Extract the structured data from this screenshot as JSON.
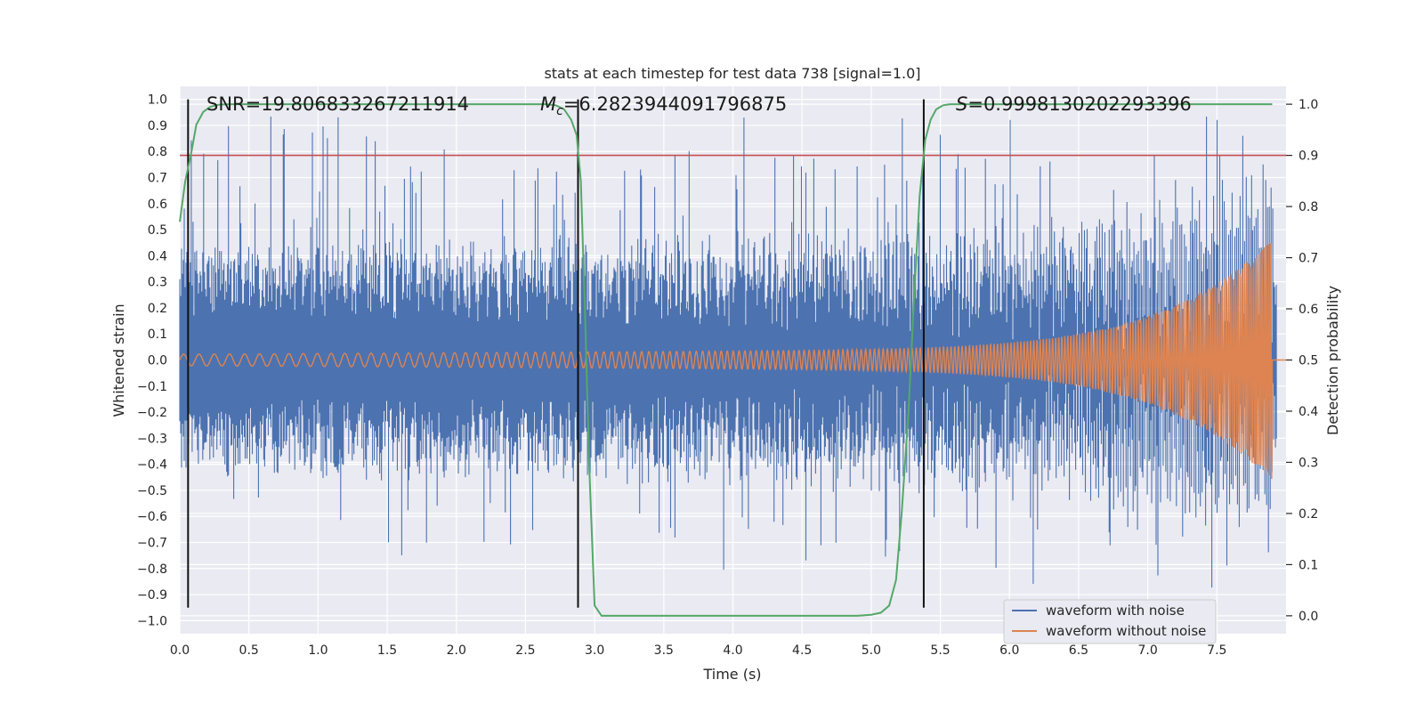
{
  "chart_data": {
    "type": "line",
    "title": "stats at each timestep for test data 738 [signal=1.0]",
    "xlabel": "Time (s)",
    "ylabel": "Whitened strain",
    "y2label": "Detection probability",
    "xlim": [
      0.0,
      8.0
    ],
    "ylim": [
      -1.05,
      1.05
    ],
    "y2lim": [
      -0.035,
      1.035
    ],
    "x_ticks": [
      "0.0",
      "0.5",
      "1.0",
      "1.5",
      "2.0",
      "2.5",
      "3.0",
      "3.5",
      "4.0",
      "4.5",
      "5.0",
      "5.5",
      "6.0",
      "6.5",
      "7.0",
      "7.5"
    ],
    "y_ticks": [
      "1.0",
      "0.9",
      "0.8",
      "0.7",
      "0.6",
      "0.5",
      "0.4",
      "0.3",
      "0.2",
      "0.1",
      "0.0",
      "−0.1",
      "−0.2",
      "−0.3",
      "−0.4",
      "−0.5",
      "−0.6",
      "−0.7",
      "−0.8",
      "−0.9",
      "−1.0"
    ],
    "y2_ticks": [
      "1.0",
      "0.9",
      "0.8",
      "0.7",
      "0.6",
      "0.5",
      "0.4",
      "0.3",
      "0.2",
      "0.1",
      "0.0"
    ],
    "annotations": {
      "snr": "SNR=19.806833267211914",
      "mc_symbol": "M",
      "mc_sub": "c",
      "mc_value": "=6.2823944091796875",
      "s_symbol": "S",
      "s_value": "=0.9998130202293396"
    },
    "threshold": {
      "value": 0.9,
      "axis": "right"
    },
    "event_markers_x": [
      0.06,
      2.88,
      5.38
    ],
    "series": [
      {
        "name": "waveform with noise",
        "color": "#4c72b0",
        "axis": "left"
      },
      {
        "name": "waveform without noise",
        "color": "#dd8452",
        "axis": "left"
      },
      {
        "name": "detection probability",
        "color": "#55a868",
        "axis": "right",
        "x": [
          0.0,
          0.04,
          0.08,
          0.12,
          0.17,
          0.22,
          0.28,
          0.35,
          0.45,
          2.65,
          2.72,
          2.78,
          2.83,
          2.87,
          2.9,
          2.93,
          2.96,
          3.0,
          3.05,
          3.1,
          4.9,
          5.0,
          5.07,
          5.13,
          5.18,
          5.22,
          5.27,
          5.31,
          5.35,
          5.39,
          5.43,
          5.47,
          5.52,
          5.57,
          5.63,
          5.75,
          7.9
        ],
        "values": [
          0.77,
          0.85,
          0.9,
          0.96,
          0.985,
          0.995,
          0.999,
          1.0,
          1.0,
          1.0,
          0.998,
          0.99,
          0.97,
          0.94,
          0.85,
          0.6,
          0.3,
          0.02,
          0.0,
          0.0,
          0.0,
          0.002,
          0.006,
          0.02,
          0.07,
          0.2,
          0.4,
          0.62,
          0.82,
          0.93,
          0.97,
          0.99,
          0.998,
          1.0,
          1.0,
          1.0,
          1.0
        ]
      }
    ],
    "legend": {
      "position": "lower-right",
      "entries": [
        {
          "label": "waveform with noise",
          "color": "#4c72b0"
        },
        {
          "label": "waveform without noise",
          "color": "#dd8452"
        }
      ]
    },
    "colors": {
      "plot_bg": "#eaeaf2",
      "grid": "#ffffff",
      "threshold": "#c44e52",
      "markers": "#111111"
    }
  }
}
